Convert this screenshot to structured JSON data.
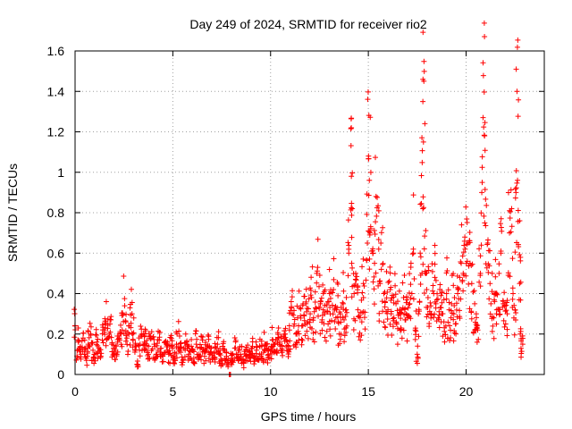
{
  "chart_data": {
    "type": "scatter",
    "title": "Day 249 of 2024, SRMTID for receiver rio2",
    "xlabel": "GPS time / hours",
    "ylabel": "SRMTID / TECUs",
    "xlim": [
      0,
      24
    ],
    "ylim": [
      0,
      1.6
    ],
    "xticks": [
      0,
      5,
      10,
      15,
      20
    ],
    "xtick_labels": [
      "0",
      "5",
      "10",
      "15",
      "20"
    ],
    "yticks": [
      0,
      0.2,
      0.4,
      0.6,
      0.8,
      1.0,
      1.2,
      1.4,
      1.6
    ],
    "ytick_labels": [
      "0",
      "0.2",
      "0.4",
      "0.6",
      "0.8",
      "1",
      "1.2",
      "1.4",
      "1.6"
    ],
    "grid": true,
    "marker": "plus",
    "color": "#ff0000",
    "series": [
      {
        "name": "rio2",
        "points": [
          [
            0.0,
            0.24
          ],
          [
            0.1,
            0.12
          ],
          [
            0.2,
            0.16
          ],
          [
            0.3,
            0.1
          ],
          [
            0.4,
            0.18
          ],
          [
            0.5,
            0.13
          ],
          [
            0.6,
            0.08
          ],
          [
            0.7,
            0.15
          ],
          [
            0.8,
            0.2
          ],
          [
            0.9,
            0.12
          ],
          [
            1.0,
            0.1
          ],
          [
            1.1,
            0.16
          ],
          [
            1.2,
            0.13
          ],
          [
            1.3,
            0.09
          ],
          [
            1.4,
            0.17
          ],
          [
            1.5,
            0.22
          ],
          [
            1.6,
            0.25
          ],
          [
            1.7,
            0.2
          ],
          [
            1.8,
            0.27
          ],
          [
            1.9,
            0.15
          ],
          [
            2.0,
            0.13
          ],
          [
            2.1,
            0.1
          ],
          [
            2.2,
            0.16
          ],
          [
            2.3,
            0.2
          ],
          [
            2.4,
            0.22
          ],
          [
            2.5,
            0.34
          ],
          [
            2.6,
            0.26
          ],
          [
            2.7,
            0.18
          ],
          [
            2.8,
            0.24
          ],
          [
            2.9,
            0.3
          ],
          [
            3.0,
            0.2
          ],
          [
            3.1,
            0.12
          ],
          [
            3.2,
            0.05
          ],
          [
            3.3,
            0.15
          ],
          [
            3.4,
            0.19
          ],
          [
            3.5,
            0.16
          ],
          [
            3.6,
            0.2
          ],
          [
            3.7,
            0.12
          ],
          [
            3.8,
            0.14
          ],
          [
            3.9,
            0.18
          ],
          [
            4.0,
            0.15
          ],
          [
            4.1,
            0.1
          ],
          [
            4.2,
            0.12
          ],
          [
            4.3,
            0.17
          ],
          [
            4.4,
            0.13
          ],
          [
            4.5,
            0.09
          ],
          [
            4.6,
            0.16
          ],
          [
            4.7,
            0.12
          ],
          [
            4.8,
            0.1
          ],
          [
            4.9,
            0.14
          ],
          [
            5.0,
            0.13
          ],
          [
            5.1,
            0.08
          ],
          [
            5.2,
            0.15
          ],
          [
            5.3,
            0.19
          ],
          [
            5.4,
            0.11
          ],
          [
            5.5,
            0.07
          ],
          [
            5.6,
            0.13
          ],
          [
            5.7,
            0.16
          ],
          [
            5.8,
            0.1
          ],
          [
            5.9,
            0.14
          ],
          [
            6.0,
            0.12
          ],
          [
            6.1,
            0.08
          ],
          [
            6.2,
            0.15
          ],
          [
            6.3,
            0.1
          ],
          [
            6.4,
            0.13
          ],
          [
            6.5,
            0.17
          ],
          [
            6.6,
            0.09
          ],
          [
            6.7,
            0.12
          ],
          [
            6.8,
            0.14
          ],
          [
            6.9,
            0.1
          ],
          [
            7.0,
            0.13
          ],
          [
            7.1,
            0.08
          ],
          [
            7.2,
            0.11
          ],
          [
            7.3,
            0.15
          ],
          [
            7.4,
            0.1
          ],
          [
            7.5,
            0.07
          ],
          [
            7.6,
            0.12
          ],
          [
            7.7,
            0.09
          ],
          [
            7.8,
            0.06
          ],
          [
            7.9,
            0.0
          ],
          [
            8.0,
            0.08
          ],
          [
            8.1,
            0.1
          ],
          [
            8.2,
            0.13
          ],
          [
            8.3,
            0.08
          ],
          [
            8.4,
            0.12
          ],
          [
            8.5,
            0.1
          ],
          [
            8.6,
            0.06
          ],
          [
            8.7,
            0.09
          ],
          [
            8.8,
            0.12
          ],
          [
            8.9,
            0.08
          ],
          [
            9.0,
            0.1
          ],
          [
            9.1,
            0.13
          ],
          [
            9.2,
            0.09
          ],
          [
            9.3,
            0.12
          ],
          [
            9.4,
            0.1
          ],
          [
            9.5,
            0.14
          ],
          [
            9.6,
            0.11
          ],
          [
            9.7,
            0.15
          ],
          [
            9.8,
            0.13
          ],
          [
            9.9,
            0.1
          ],
          [
            10.0,
            0.14
          ],
          [
            10.1,
            0.17
          ],
          [
            10.2,
            0.15
          ],
          [
            10.3,
            0.12
          ],
          [
            10.4,
            0.18
          ],
          [
            10.5,
            0.16
          ],
          [
            10.6,
            0.14
          ],
          [
            10.7,
            0.2
          ],
          [
            10.8,
            0.17
          ],
          [
            10.9,
            0.14
          ],
          [
            11.0,
            0.22
          ],
          [
            11.1,
            0.3
          ],
          [
            11.2,
            0.25
          ],
          [
            11.3,
            0.2
          ],
          [
            11.4,
            0.28
          ],
          [
            11.5,
            0.33
          ],
          [
            11.6,
            0.24
          ],
          [
            11.7,
            0.29
          ],
          [
            11.8,
            0.35
          ],
          [
            11.9,
            0.26
          ],
          [
            12.0,
            0.3
          ],
          [
            12.1,
            0.38
          ],
          [
            12.2,
            0.28
          ],
          [
            12.3,
            0.33
          ],
          [
            12.4,
            0.5
          ],
          [
            12.5,
            0.35
          ],
          [
            12.6,
            0.27
          ],
          [
            12.7,
            0.32
          ],
          [
            12.8,
            0.3
          ],
          [
            12.9,
            0.25
          ],
          [
            13.0,
            0.36
          ],
          [
            13.1,
            0.3
          ],
          [
            13.2,
            0.42
          ],
          [
            13.3,
            0.28
          ],
          [
            13.4,
            0.33
          ],
          [
            13.5,
            0.26
          ],
          [
            13.6,
            0.3
          ],
          [
            13.7,
            0.35
          ],
          [
            13.8,
            0.27
          ],
          [
            13.9,
            0.32
          ],
          [
            14.0,
            0.6
          ],
          [
            14.1,
            0.98
          ],
          [
            14.15,
            0.82
          ],
          [
            14.2,
            0.55
          ],
          [
            14.3,
            0.4
          ],
          [
            14.4,
            0.5
          ],
          [
            14.5,
            0.32
          ],
          [
            14.6,
            0.28
          ],
          [
            14.7,
            0.45
          ],
          [
            14.8,
            0.38
          ],
          [
            14.9,
            0.65
          ],
          [
            15.0,
            1.08
          ],
          [
            15.05,
            0.96
          ],
          [
            15.1,
            0.7
          ],
          [
            15.2,
            0.6
          ],
          [
            15.3,
            0.55
          ],
          [
            15.4,
            0.88
          ],
          [
            15.5,
            0.62
          ],
          [
            15.6,
            0.45
          ],
          [
            15.7,
            0.52
          ],
          [
            15.8,
            0.4
          ],
          [
            15.9,
            0.36
          ],
          [
            16.0,
            0.32
          ],
          [
            16.1,
            0.42
          ],
          [
            16.2,
            0.3
          ],
          [
            16.3,
            0.28
          ],
          [
            16.4,
            0.35
          ],
          [
            16.5,
            0.25
          ],
          [
            16.6,
            0.3
          ],
          [
            16.7,
            0.22
          ],
          [
            16.8,
            0.38
          ],
          [
            16.9,
            0.3
          ],
          [
            17.0,
            0.28
          ],
          [
            17.1,
            0.35
          ],
          [
            17.2,
            0.4
          ],
          [
            17.3,
            0.62
          ],
          [
            17.4,
            0.22
          ],
          [
            17.5,
            0.1
          ],
          [
            17.6,
            0.3
          ],
          [
            17.7,
            0.6
          ],
          [
            17.75,
            0.82
          ],
          [
            17.8,
            1.35
          ],
          [
            17.85,
            1.15
          ],
          [
            17.9,
            0.5
          ],
          [
            18.0,
            0.42
          ],
          [
            18.1,
            0.38
          ],
          [
            18.2,
            0.3
          ],
          [
            18.3,
            0.4
          ],
          [
            18.4,
            0.48
          ],
          [
            18.5,
            0.35
          ],
          [
            18.6,
            0.28
          ],
          [
            18.7,
            0.33
          ],
          [
            18.8,
            0.3
          ],
          [
            18.9,
            0.26
          ],
          [
            19.0,
            0.4
          ],
          [
            19.1,
            0.32
          ],
          [
            19.2,
            0.28
          ],
          [
            19.3,
            0.35
          ],
          [
            19.4,
            0.3
          ],
          [
            19.5,
            0.25
          ],
          [
            19.6,
            0.4
          ],
          [
            19.7,
            0.48
          ],
          [
            19.8,
            0.55
          ],
          [
            19.9,
            0.5
          ],
          [
            20.0,
            0.62
          ],
          [
            20.1,
            0.65
          ],
          [
            20.2,
            0.55
          ],
          [
            20.3,
            0.45
          ],
          [
            20.4,
            0.35
          ],
          [
            20.5,
            0.3
          ],
          [
            20.6,
            0.22
          ],
          [
            20.7,
            0.5
          ],
          [
            20.8,
            0.9
          ],
          [
            20.9,
            1.27
          ],
          [
            20.95,
            1.18
          ],
          [
            21.0,
            0.75
          ],
          [
            21.1,
            0.65
          ],
          [
            21.2,
            0.45
          ],
          [
            21.3,
            0.35
          ],
          [
            21.4,
            0.28
          ],
          [
            21.5,
            0.4
          ],
          [
            21.6,
            0.3
          ],
          [
            21.7,
            0.5
          ],
          [
            21.8,
            0.6
          ],
          [
            21.9,
            0.35
          ],
          [
            22.0,
            0.25
          ],
          [
            22.1,
            0.3
          ],
          [
            22.2,
            0.7
          ],
          [
            22.3,
            0.82
          ],
          [
            22.4,
            0.4
          ],
          [
            22.5,
            0.32
          ],
          [
            22.55,
            0.9
          ],
          [
            22.6,
            1.51
          ],
          [
            22.65,
            1.4
          ],
          [
            22.7,
            0.76
          ],
          [
            22.75,
            0.45
          ],
          [
            22.8,
            0.2
          ],
          [
            22.85,
            0.15
          ]
        ]
      }
    ]
  }
}
